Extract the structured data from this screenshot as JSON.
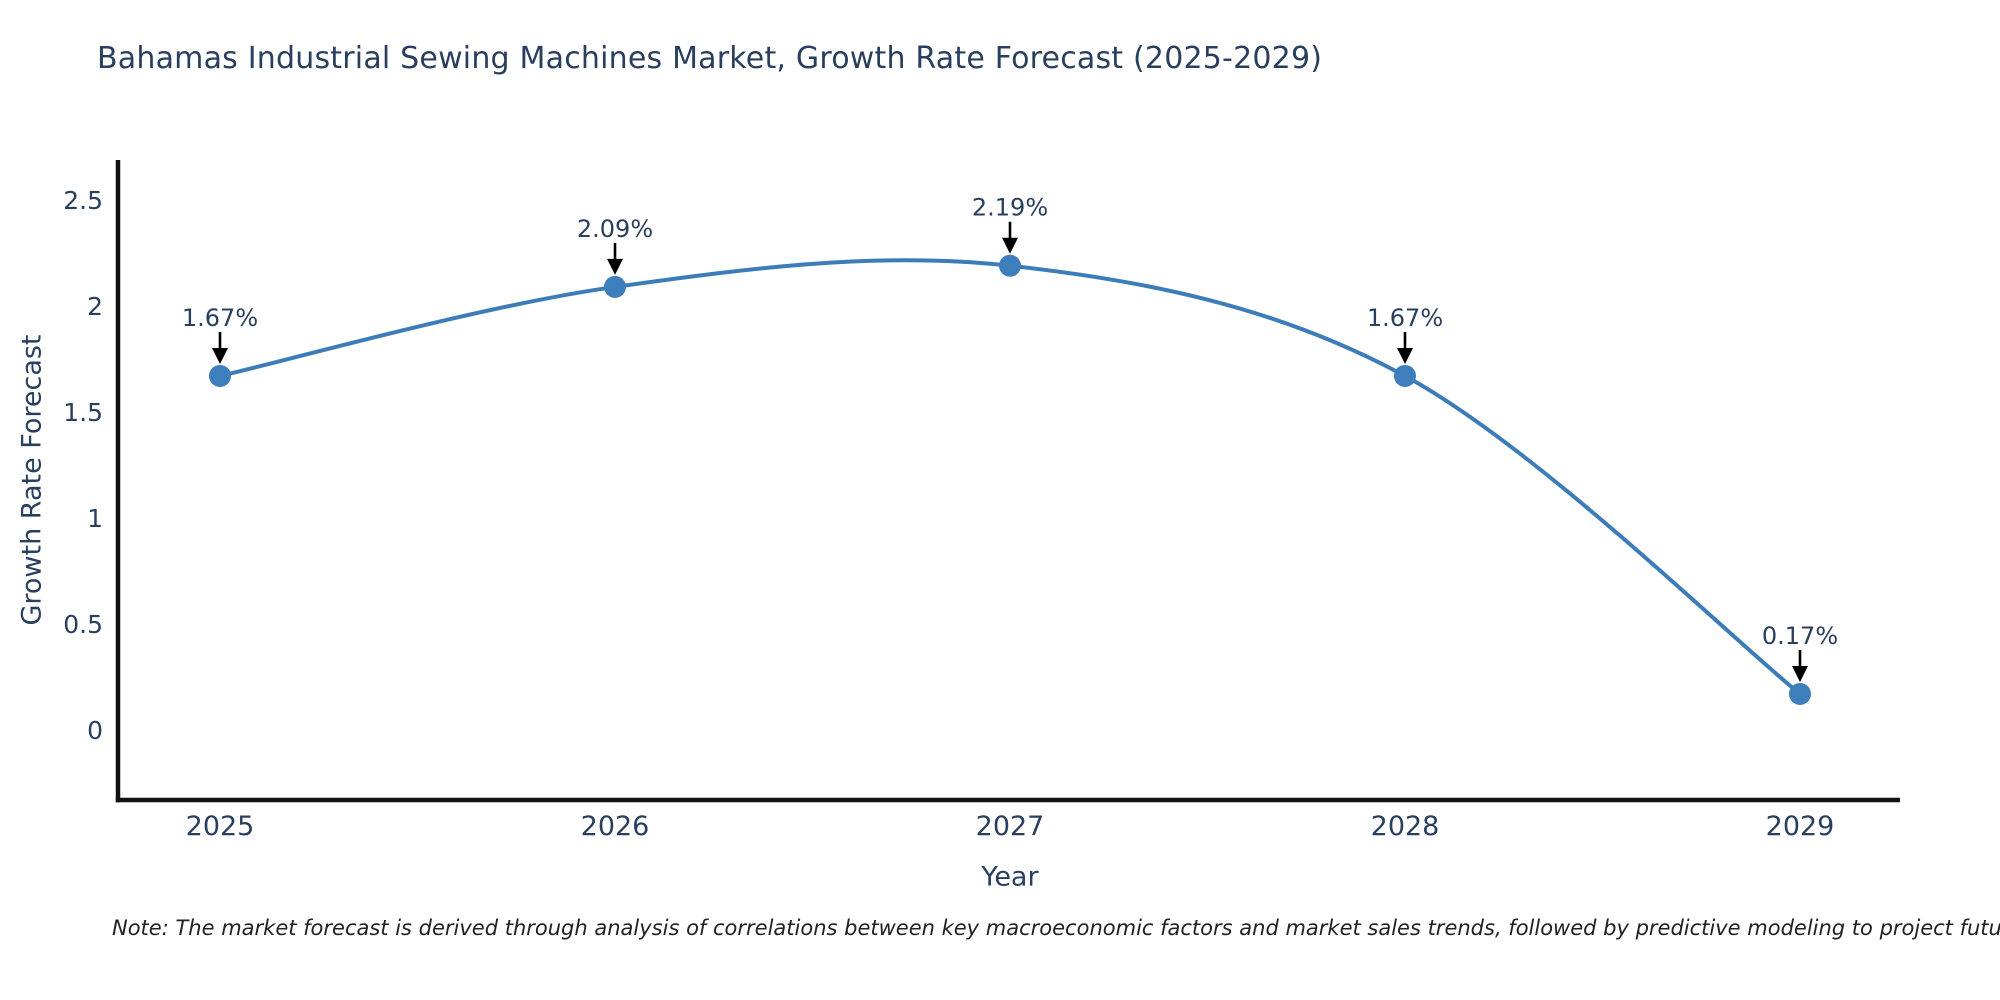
{
  "note": "Note: The market forecast is derived through analysis of correlations between key macroeconomic factors and market sales trends, followed by predictive modeling to project future sales",
  "colors": {
    "line": "#3c7cb8",
    "marker": "#3e7ebd",
    "text": "#2a3f5f",
    "axis": "#111111",
    "arrow": "#000000",
    "background": "#ffffff",
    "note_text": "#222222"
  },
  "chart_data": {
    "type": "line",
    "line_shape": "spline",
    "title": "Bahamas Industrial Sewing Machines Market, Growth Rate Forecast (2025-2029)",
    "xlabel": "Year",
    "ylabel": "Growth Rate Forecast",
    "categories": [
      "2025",
      "2026",
      "2027",
      "2028",
      "2029"
    ],
    "values": [
      1.67,
      2.09,
      2.19,
      1.67,
      0.17
    ],
    "point_labels": [
      "1.67%",
      "2.09%",
      "2.19%",
      "1.67%",
      "0.17%"
    ],
    "yticks": [
      0,
      0.5,
      1,
      1.5,
      2,
      2.5
    ],
    "ytick_labels": [
      "0",
      "0.5",
      "1",
      "1.5",
      "2",
      "2.5"
    ],
    "ylim": [
      -0.33,
      2.69
    ],
    "grid": false,
    "legend": false,
    "annotations": "value labels above each point with black down-arrows"
  }
}
